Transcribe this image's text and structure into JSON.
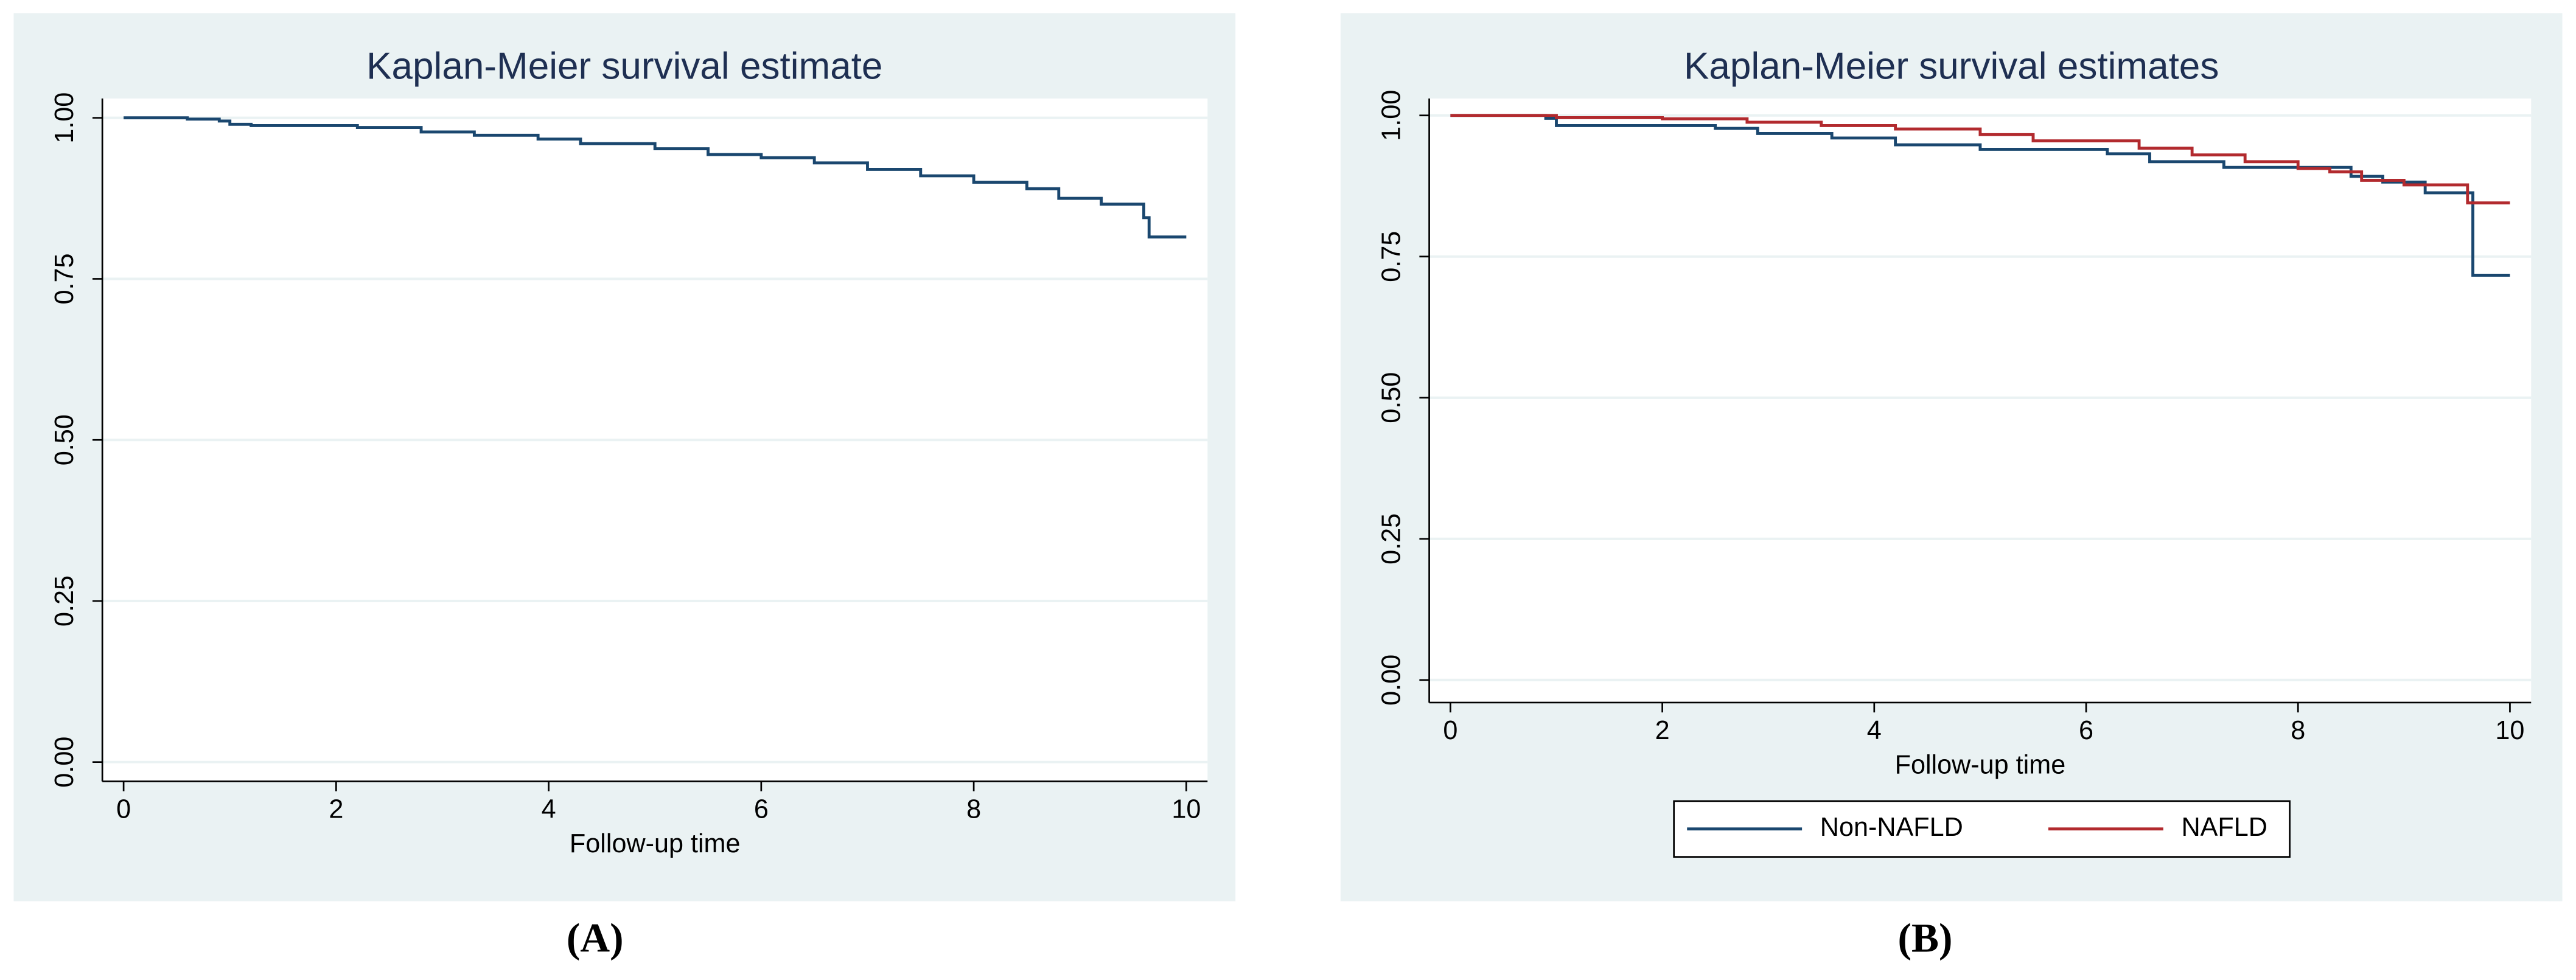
{
  "chart_data": [
    {
      "type": "line",
      "step": true,
      "title": "Kaplan-Meier survival estimate",
      "x_label": "Follow-up time",
      "panel_label": "(A)",
      "xlim": [
        -0.2,
        10.2
      ],
      "xticks": [
        0,
        2,
        4,
        6,
        8,
        10
      ],
      "ylim": [
        -0.03,
        1.03
      ],
      "yticks": [
        {
          "value": 0,
          "label": "0.00"
        },
        {
          "value": 0.25,
          "label": "0.25"
        },
        {
          "value": 0.5,
          "label": "0.50"
        },
        {
          "value": 0.75,
          "label": "0.75"
        },
        {
          "value": 1,
          "label": "1.00"
        }
      ],
      "grid": true,
      "series": [
        {
          "color": "#1a476f",
          "x": [
            0,
            0.6,
            0.9,
            1.0,
            1.2,
            2.2,
            2.8,
            3.3,
            3.9,
            4.3,
            5.0,
            5.5,
            6.0,
            6.5,
            7.0,
            7.5,
            8.0,
            8.5,
            8.8,
            9.2,
            9.6,
            9.65,
            10.0
          ],
          "values": [
            1,
            0.998,
            0.995,
            0.99,
            0.988,
            0.985,
            0.978,
            0.973,
            0.967,
            0.96,
            0.952,
            0.943,
            0.938,
            0.93,
            0.92,
            0.91,
            0.9,
            0.89,
            0.875,
            0.866,
            0.845,
            0.815,
            0.815
          ]
        }
      ]
    },
    {
      "type": "line",
      "step": true,
      "title": "Kaplan-Meier survival estimates",
      "x_label": "Follow-up time",
      "panel_label": "(B)",
      "xlim": [
        -0.2,
        10.2
      ],
      "xticks": [
        0,
        2,
        4,
        6,
        8,
        10
      ],
      "ylim": [
        -0.04,
        1.03
      ],
      "yticks": [
        {
          "value": 0,
          "label": "0.00"
        },
        {
          "value": 0.25,
          "label": "0.25"
        },
        {
          "value": 0.5,
          "label": "0.50"
        },
        {
          "value": 0.75,
          "label": "0.75"
        },
        {
          "value": 1,
          "label": "1.00"
        }
      ],
      "grid": true,
      "legend": "bottom",
      "series": [
        {
          "name": "Non-NAFLD",
          "color": "#1a476f",
          "x": [
            0,
            0.9,
            1.0,
            2.5,
            2.9,
            3.6,
            4.2,
            5.0,
            6.2,
            6.6,
            7.3,
            8.5,
            8.8,
            9.2,
            9.65,
            10.0
          ],
          "values": [
            1,
            0.995,
            0.982,
            0.977,
            0.968,
            0.96,
            0.948,
            0.94,
            0.932,
            0.918,
            0.908,
            0.892,
            0.882,
            0.863,
            0.717,
            0.717
          ]
        },
        {
          "name": "NAFLD",
          "color": "#b22a2e",
          "x": [
            0,
            1.0,
            2.0,
            2.8,
            3.5,
            4.2,
            5.0,
            5.5,
            6.5,
            7.0,
            7.5,
            8.0,
            8.3,
            8.6,
            9.0,
            9.6,
            10.0
          ],
          "values": [
            1,
            0.996,
            0.994,
            0.988,
            0.982,
            0.976,
            0.966,
            0.955,
            0.942,
            0.93,
            0.918,
            0.906,
            0.9,
            0.885,
            0.877,
            0.845,
            0.845
          ]
        }
      ]
    }
  ]
}
